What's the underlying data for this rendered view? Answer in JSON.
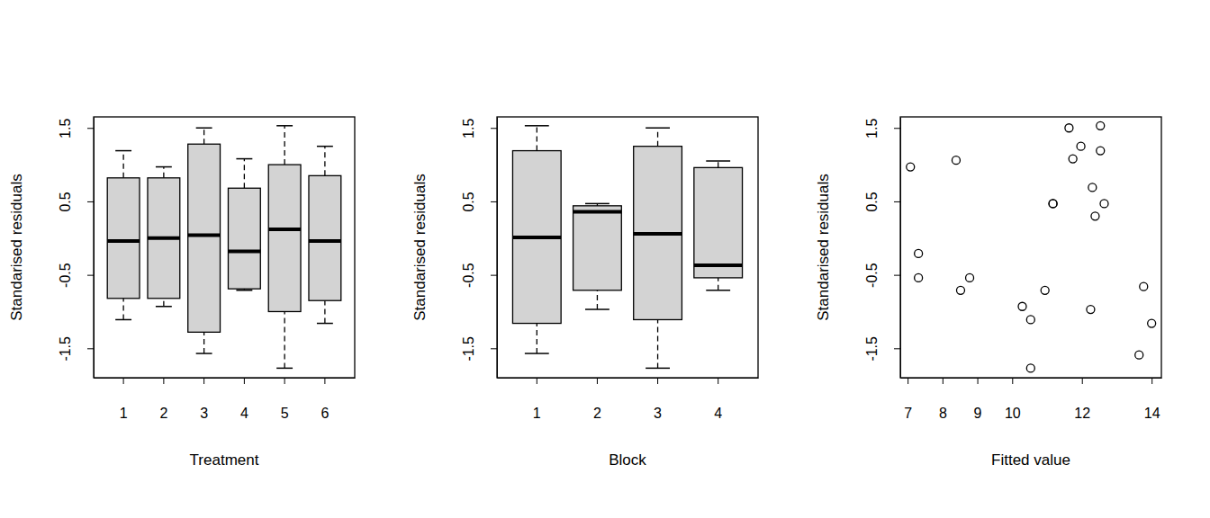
{
  "chart_data": [
    {
      "type": "box",
      "x_label": "Treatment",
      "y_label": "Standarised residuals",
      "categories": [
        "1",
        "2",
        "3",
        "4",
        "5",
        "6"
      ],
      "whisker_low": [
        -1.11,
        -0.93,
        -1.57,
        -0.71,
        -1.77,
        -1.16
      ],
      "q1": [
        -0.82,
        -0.82,
        -1.28,
        -0.69,
        -1.0,
        -0.85
      ],
      "median": [
        -0.04,
        0.0,
        0.04,
        -0.18,
        0.12,
        -0.04
      ],
      "q3": [
        0.82,
        0.82,
        1.28,
        0.68,
        1.0,
        0.85
      ],
      "whisker_high": [
        1.19,
        0.97,
        1.5,
        1.08,
        1.53,
        1.25
      ],
      "color": "#d3d3d3",
      "ylim": [
        -1.9,
        1.65
      ],
      "yticks": [
        -1.5,
        -0.5,
        0.5,
        1.5
      ]
    },
    {
      "type": "box",
      "x_label": "Block",
      "y_label": "Standarised residuals",
      "categories": [
        "1",
        "2",
        "3",
        "4"
      ],
      "whisker_low": [
        -1.57,
        -0.97,
        -1.77,
        -0.71
      ],
      "q1": [
        -1.16,
        -0.71,
        -1.11,
        -0.54
      ],
      "median": [
        0.01,
        0.36,
        0.06,
        -0.37
      ],
      "q3": [
        1.19,
        0.44,
        1.25,
        0.96
      ],
      "whisker_high": [
        1.53,
        0.47,
        1.5,
        1.05
      ],
      "color": "#d3d3d3",
      "ylim": [
        -1.9,
        1.65
      ],
      "yticks": [
        -1.5,
        -0.5,
        0.5,
        1.5
      ]
    },
    {
      "type": "scatter",
      "x_label": "Fitted value",
      "y_label": "Standarised residuals",
      "x": [
        7.08,
        7.31,
        7.31,
        8.39,
        8.52,
        8.78,
        10.29,
        10.53,
        10.53,
        10.94,
        11.17,
        11.17,
        11.63,
        11.74,
        11.97,
        12.25,
        12.3,
        12.38,
        12.53,
        12.53,
        12.64,
        13.77,
        13.64,
        14.0
      ],
      "values": [
        0.97,
        -0.21,
        -0.54,
        1.06,
        -0.71,
        -0.54,
        -0.93,
        -1.11,
        -1.77,
        -0.71,
        0.47,
        0.47,
        1.5,
        1.08,
        1.25,
        -0.97,
        0.69,
        0.3,
        1.53,
        1.19,
        0.47,
        -0.66,
        -1.59,
        -1.16
      ],
      "marker": "circle",
      "color": "#000000",
      "xlim": [
        6.79,
        14.28
      ],
      "ylim": [
        -1.9,
        1.65
      ],
      "xticks": [
        7,
        8,
        9,
        10,
        12,
        14
      ],
      "yticks": [
        -1.5,
        -0.5,
        0.5,
        1.5
      ]
    }
  ]
}
